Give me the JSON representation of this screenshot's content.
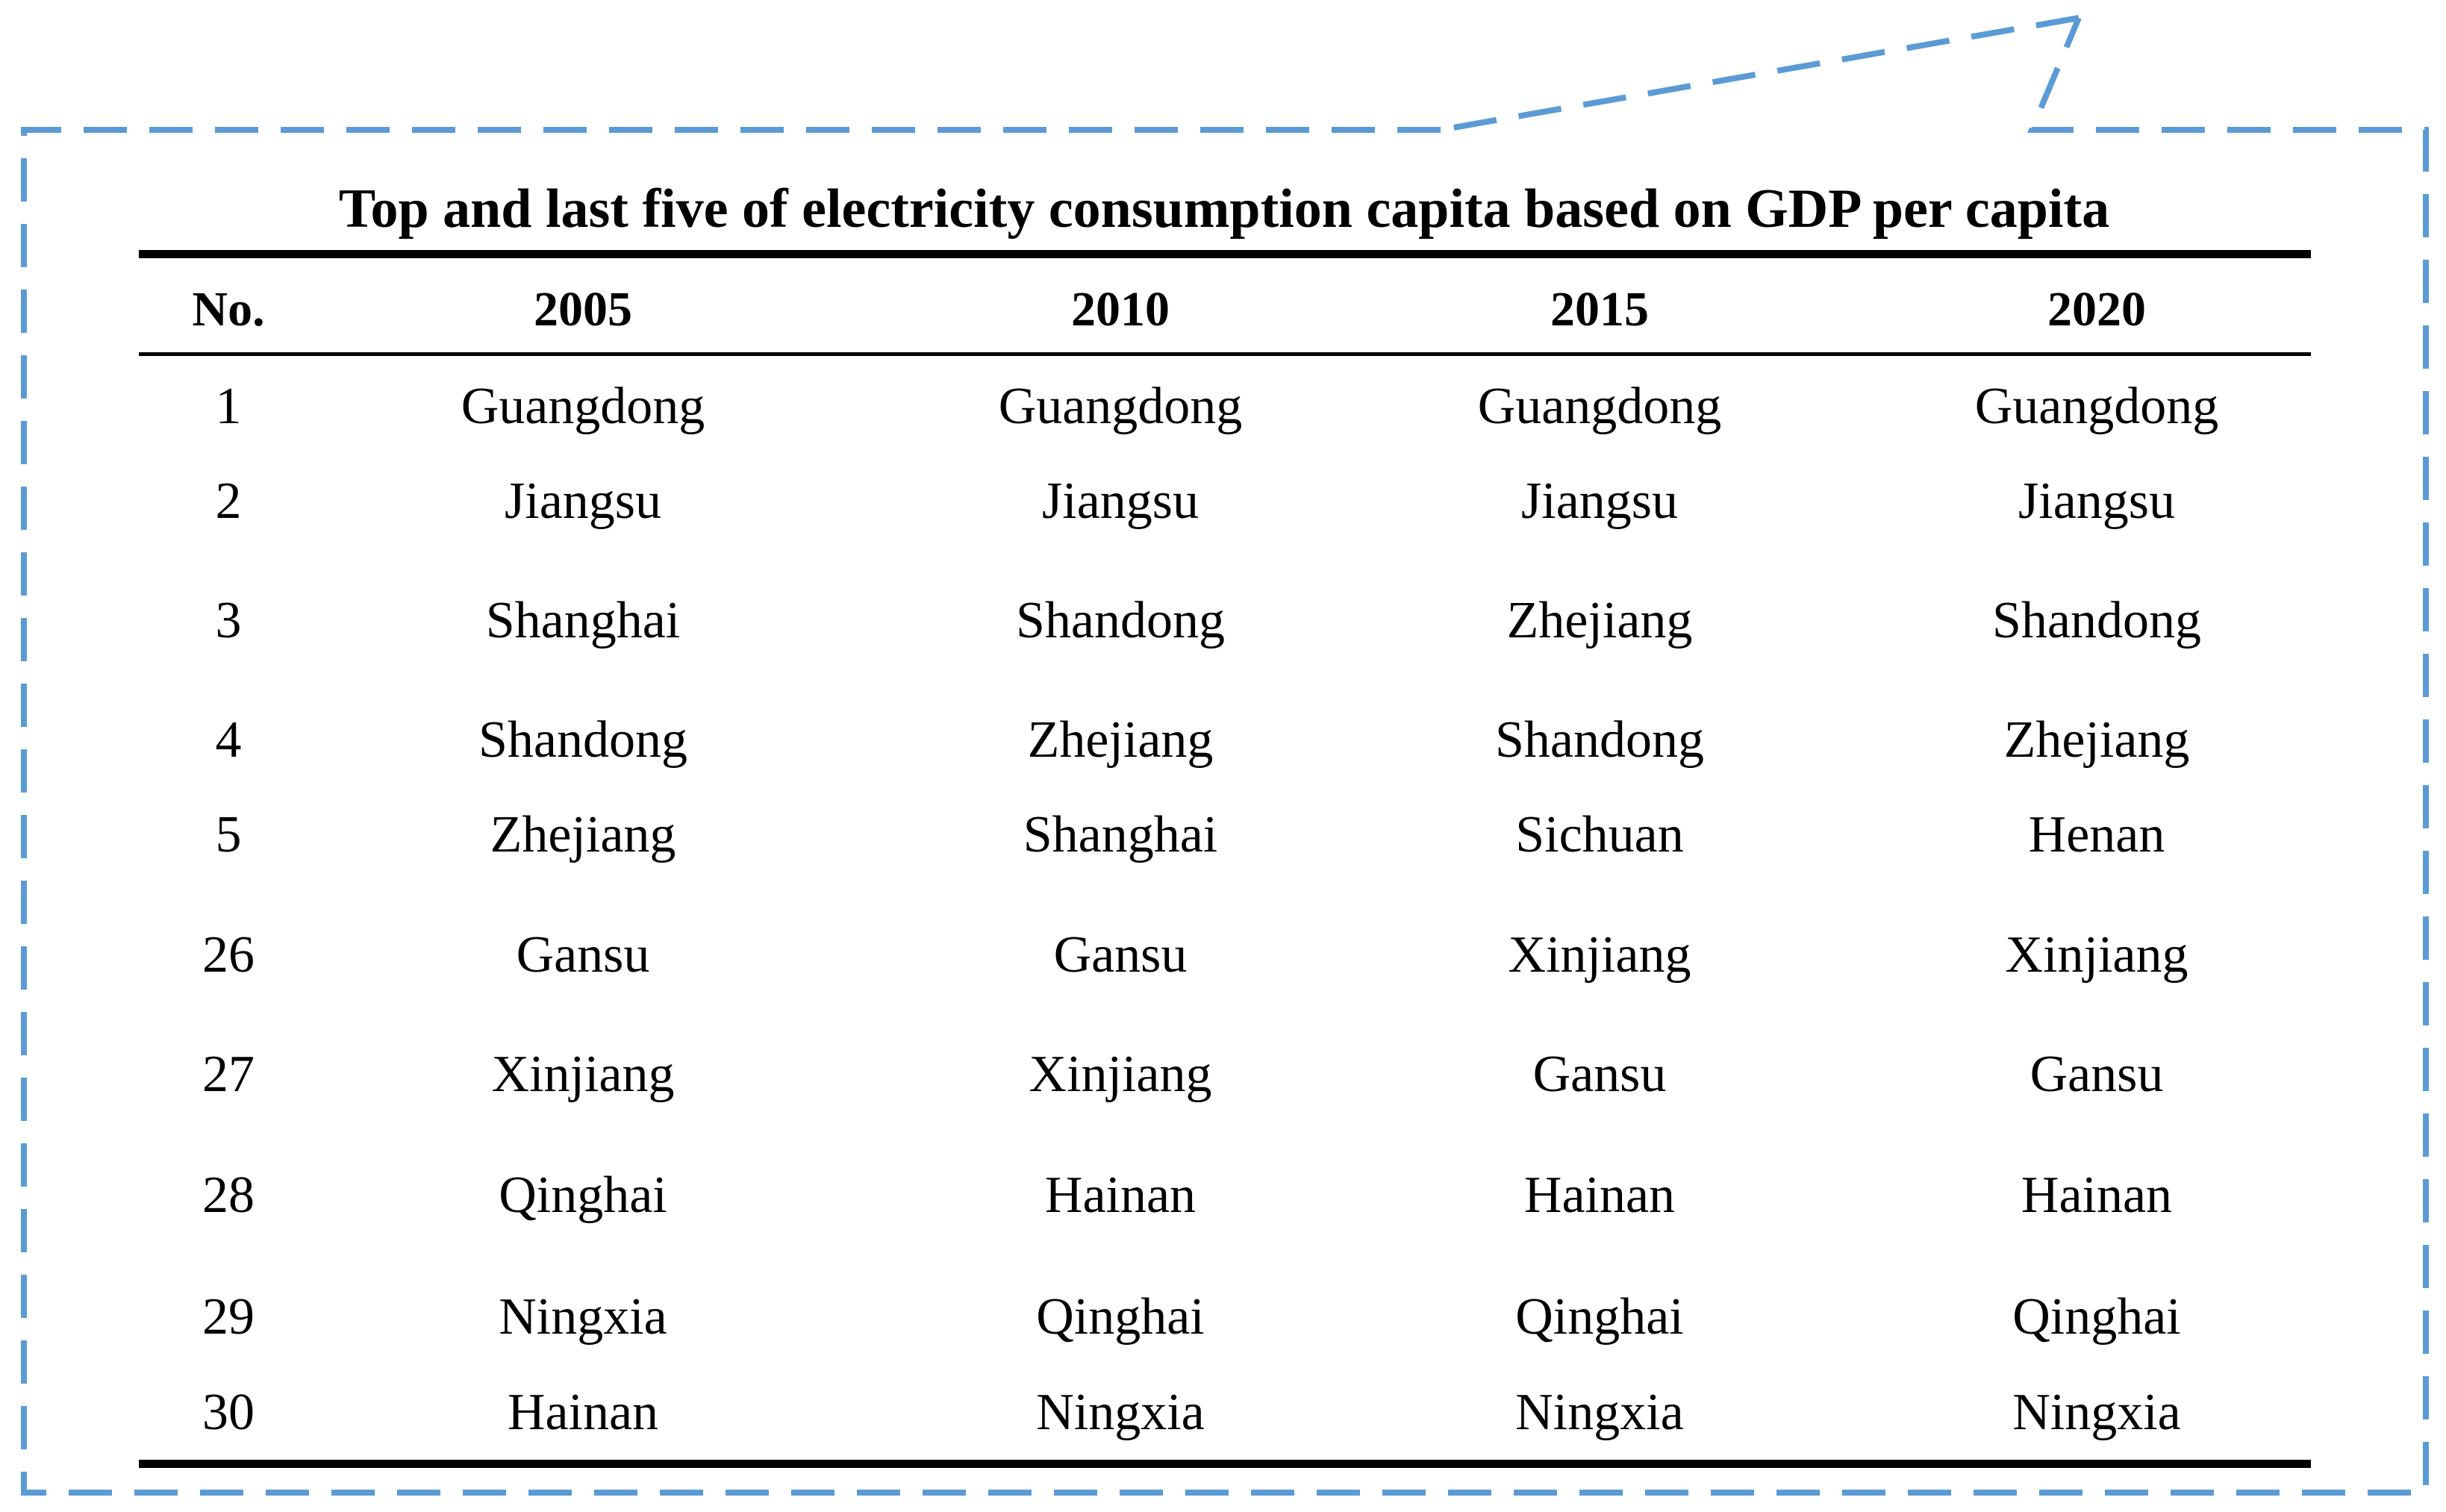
{
  "title": "Top and last five of electricity consumption capita based on GDP per capita",
  "columns": [
    "No.",
    "2005",
    "2010",
    "2015",
    "2020"
  ],
  "rows": [
    [
      "1",
      "Guangdong",
      "Guangdong",
      "Guangdong",
      "Guangdong"
    ],
    [
      "2",
      "Jiangsu",
      "Jiangsu",
      "Jiangsu",
      "Jiangsu"
    ],
    [
      "3",
      "Shanghai",
      "Shandong",
      "Zhejiang",
      "Shandong"
    ],
    [
      "4",
      "Shandong",
      "Zhejiang",
      "Shandong",
      "Zhejiang"
    ],
    [
      "5",
      "Zhejiang",
      "Shanghai",
      "Sichuan",
      "Henan"
    ],
    [
      "26",
      "Gansu",
      "Gansu",
      "Xinjiang",
      "Xinjiang"
    ],
    [
      "27",
      "Xinjiang",
      "Xinjiang",
      "Gansu",
      "Gansu"
    ],
    [
      "28",
      "Qinghai",
      "Hainan",
      "Hainan",
      "Hainan"
    ],
    [
      "29",
      "Ningxia",
      "Qinghai",
      "Qinghai",
      "Qinghai"
    ],
    [
      "30",
      "Hainan",
      "Ningxia",
      "Ningxia",
      "Ningxia"
    ]
  ],
  "colors": {
    "frame": "#5B9BD5",
    "text": "#000000"
  }
}
